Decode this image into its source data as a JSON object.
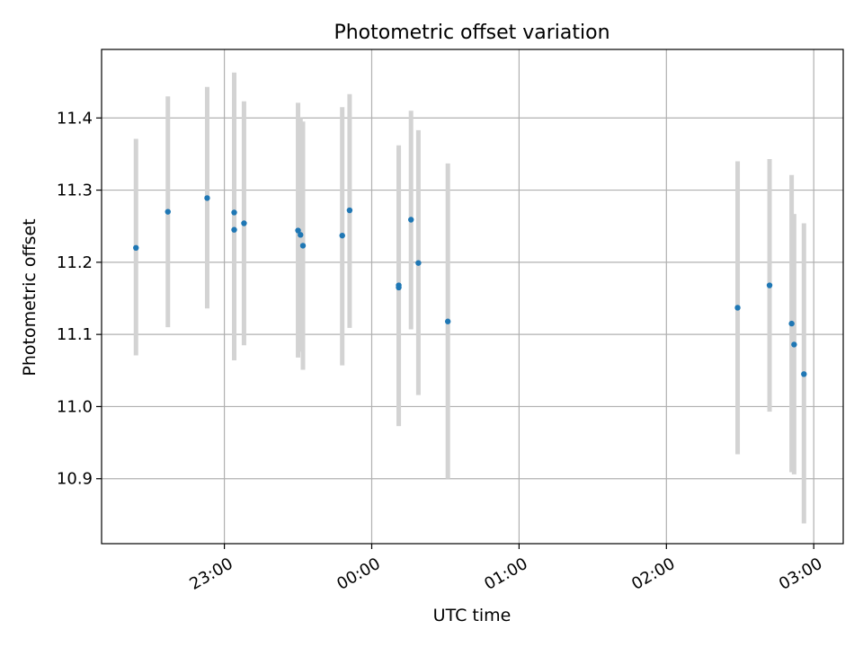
{
  "chart_data": {
    "type": "scatter",
    "title": "Photometric offset variation",
    "xlabel": "UTC time",
    "ylabel": "Photometric offset",
    "x_axis": "time",
    "x_ticks": [
      "23:00",
      "00:00",
      "01:00",
      "02:00",
      "03:00"
    ],
    "xlim": [
      "22:10",
      "03:12"
    ],
    "y_ticks": [
      10.9,
      11.0,
      11.1,
      11.2,
      11.3,
      11.4
    ],
    "ylim": [
      10.81,
      11.495
    ],
    "grid": true,
    "legend": "none",
    "series": [
      {
        "x": [
          "22:24",
          "22:37",
          "22:53",
          "23:04",
          "23:04",
          "23:08",
          "23:30",
          "23:31",
          "23:32",
          "23:48",
          "23:51",
          "00:11",
          "00:11",
          "00:16",
          "00:19",
          "00:31",
          "02:29",
          "02:42",
          "02:51",
          "02:52",
          "02:56"
        ],
        "y": [
          11.22,
          11.27,
          11.289,
          11.269,
          11.245,
          11.254,
          11.244,
          11.238,
          11.223,
          11.237,
          11.272,
          11.168,
          11.165,
          11.259,
          11.199,
          11.118,
          11.137,
          11.168,
          11.115,
          11.086,
          11.045
        ],
        "err_low": [
          11.071,
          11.11,
          11.136,
          11.064,
          11.072,
          11.085,
          11.068,
          11.076,
          11.051,
          11.057,
          11.109,
          10.973,
          10.973,
          11.107,
          11.016,
          10.9,
          10.934,
          10.993,
          10.909,
          10.906,
          10.838
        ],
        "err_high": [
          11.371,
          11.43,
          11.443,
          11.463,
          11.427,
          11.423,
          11.421,
          11.4,
          11.395,
          11.415,
          11.433,
          11.362,
          11.358,
          11.41,
          11.383,
          11.337,
          11.34,
          11.343,
          11.321,
          11.267,
          11.254
        ]
      }
    ],
    "colors": {
      "point": "#1f77b4",
      "errorbar": "#d3d3d3",
      "grid": "#b0b0b0",
      "axes": "#000000"
    }
  }
}
